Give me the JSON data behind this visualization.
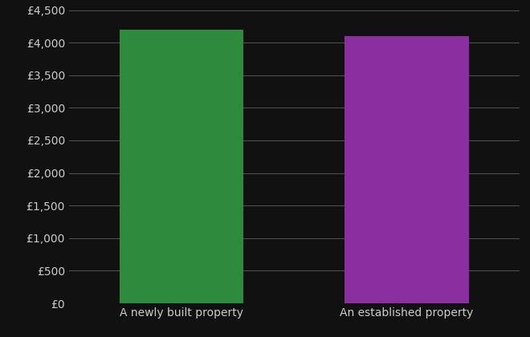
{
  "categories": [
    "A newly built property",
    "An established property"
  ],
  "values": [
    4200,
    4100
  ],
  "bar_colors": [
    "#2e8b3e",
    "#8b2fa0"
  ],
  "background_color": "#111111",
  "text_color": "#cccccc",
  "grid_color": "#555555",
  "ylim": [
    0,
    4500
  ],
  "ytick_step": 500,
  "bar_width": 0.55,
  "figsize": [
    6.6,
    4.2
  ],
  "dpi": 100
}
